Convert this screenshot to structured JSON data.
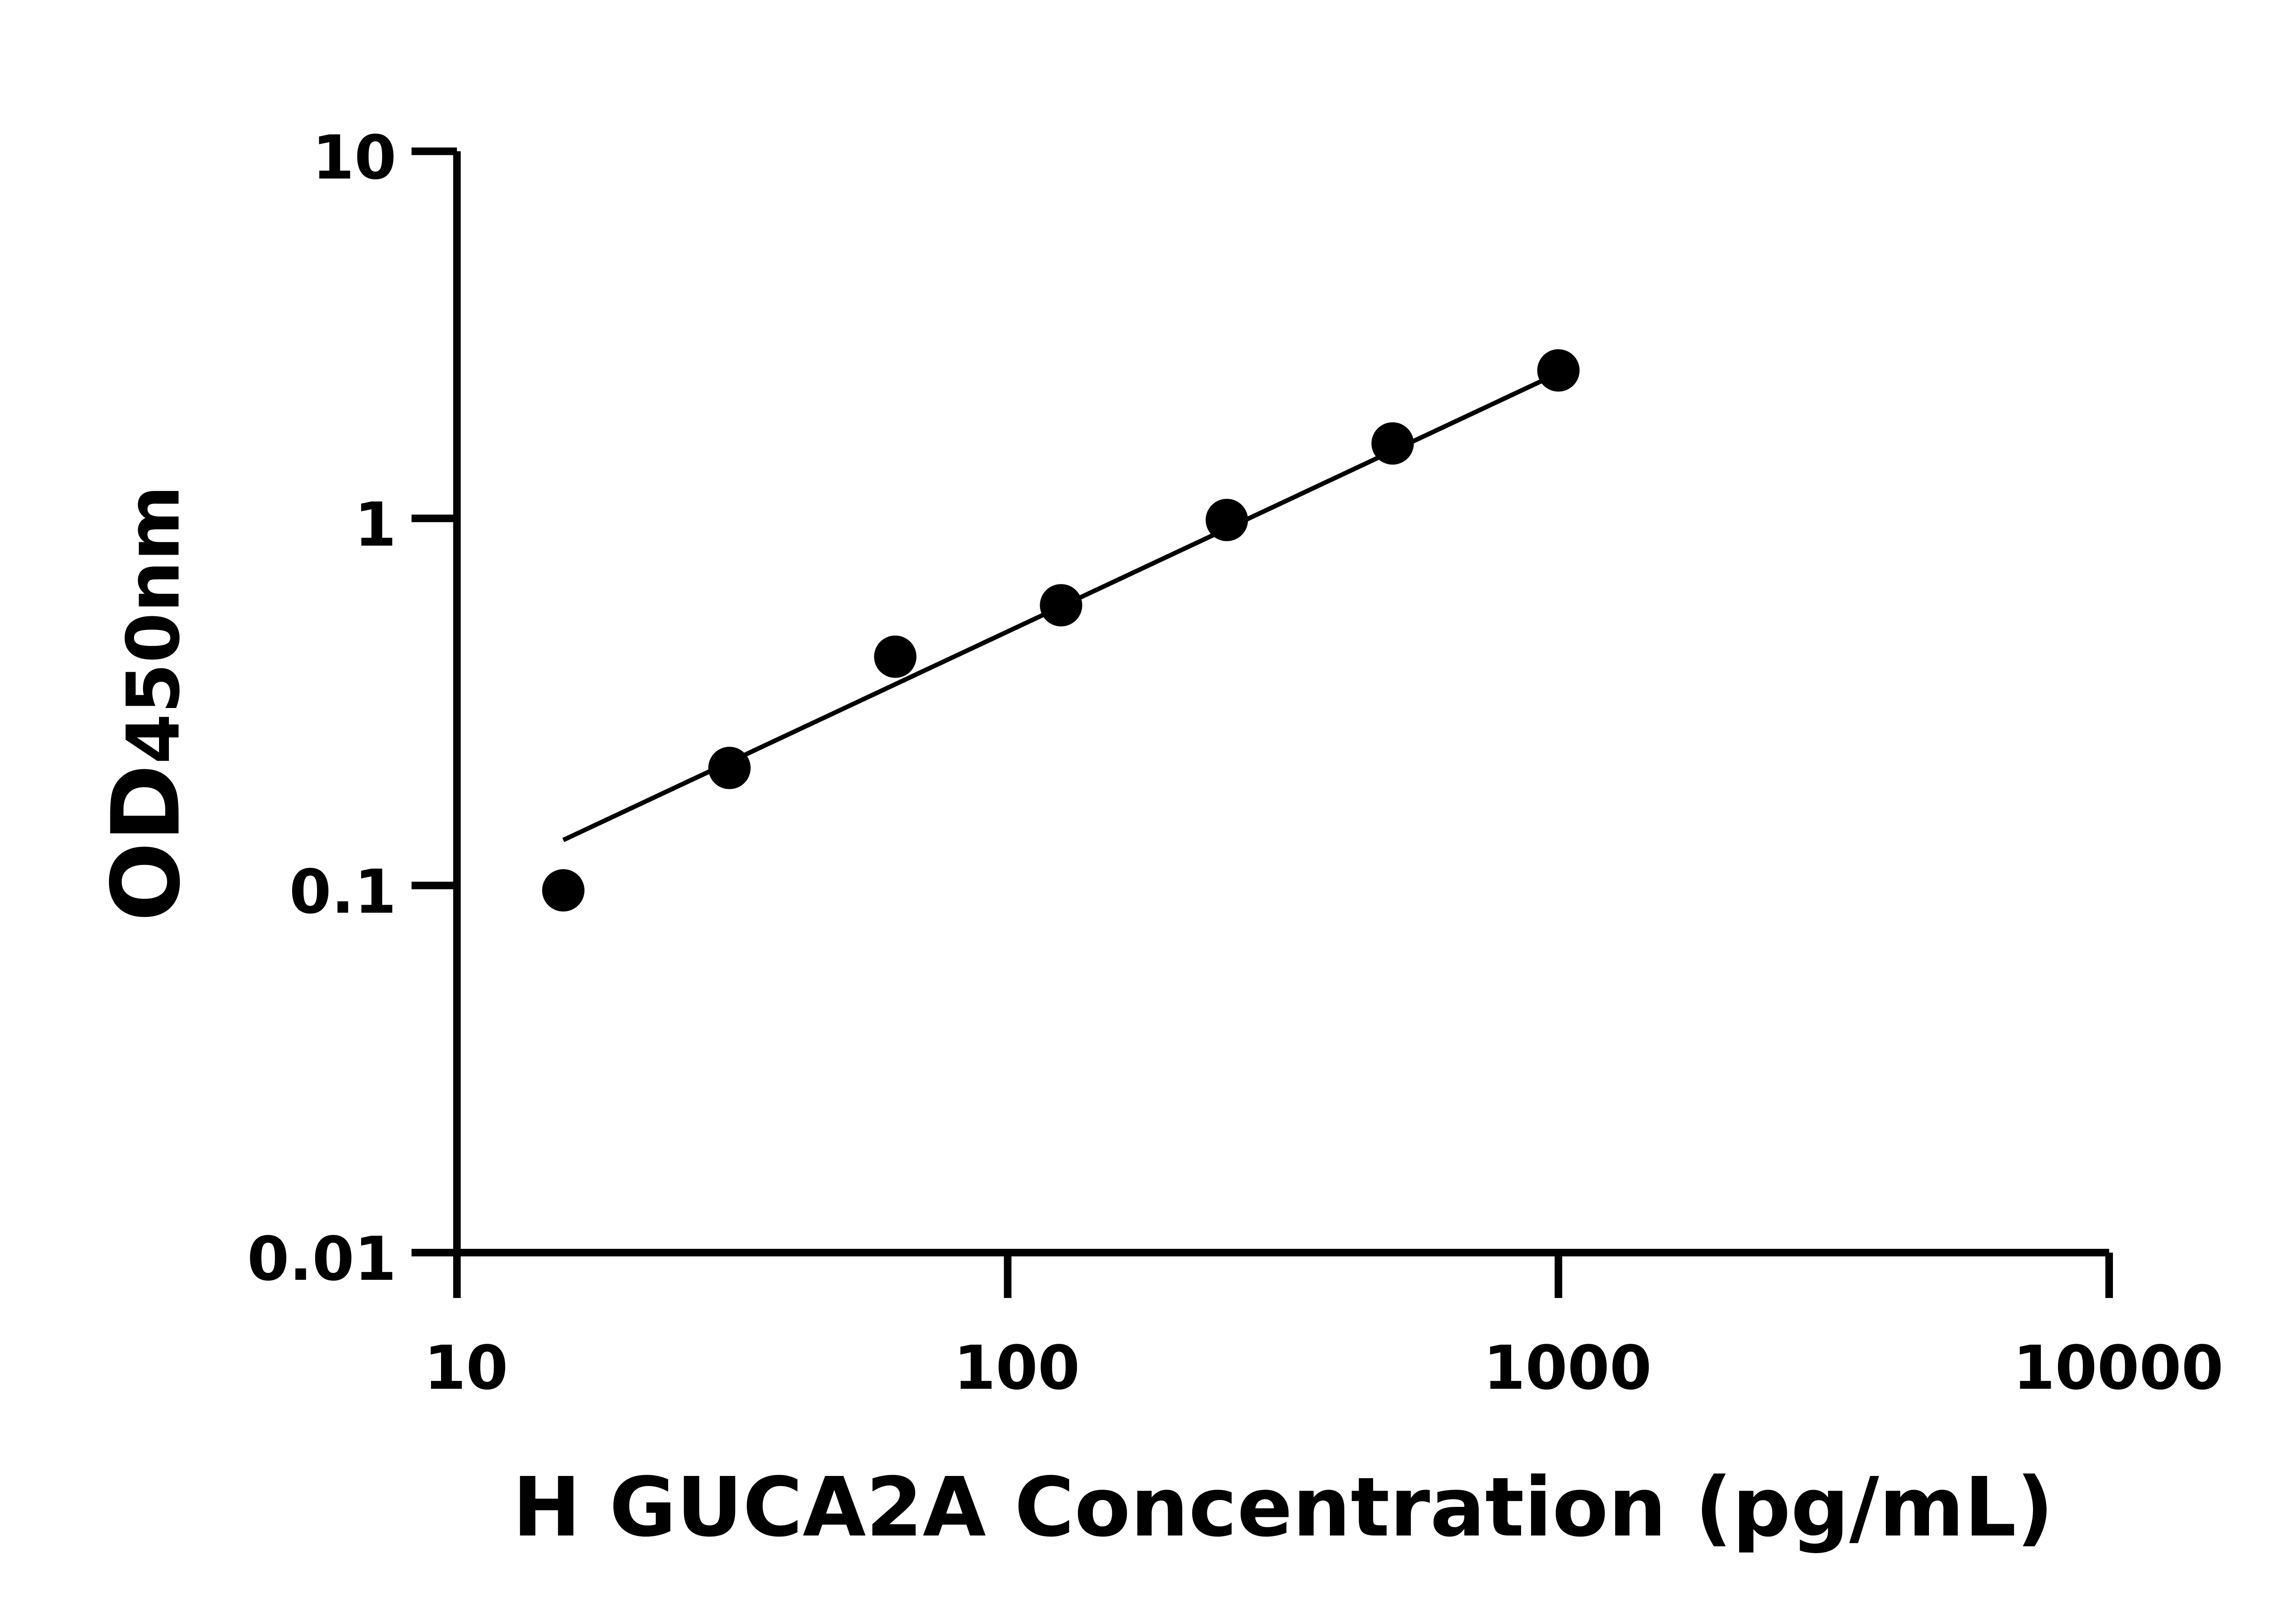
{
  "chart_data": {
    "type": "scatter",
    "title": "",
    "xlabel": "H GUCA2A Concentration (pg/mL)",
    "ylabel_main": "OD",
    "ylabel_sub": "450nm",
    "x_scale": "log",
    "y_scale": "log",
    "xlim": [
      10,
      10000
    ],
    "ylim": [
      0.01,
      10
    ],
    "x_ticks": [
      "10",
      "100",
      "1000",
      "10000"
    ],
    "y_ticks": [
      "0.01",
      "0.1",
      "1",
      "10"
    ],
    "grid": false,
    "points": [
      {
        "x": 15.6,
        "y": 0.097
      },
      {
        "x": 31.25,
        "y": 0.209
      },
      {
        "x": 62.5,
        "y": 0.42
      },
      {
        "x": 125,
        "y": 0.58
      },
      {
        "x": 250,
        "y": 0.99
      },
      {
        "x": 500,
        "y": 1.6
      },
      {
        "x": 1000,
        "y": 2.53
      }
    ],
    "fit_line": [
      {
        "x": 15.6,
        "y": 0.133
      },
      {
        "x": 945,
        "y": 2.39
      }
    ],
    "colors": {
      "points": "#000000",
      "line": "#000000",
      "axes": "#000000"
    }
  }
}
